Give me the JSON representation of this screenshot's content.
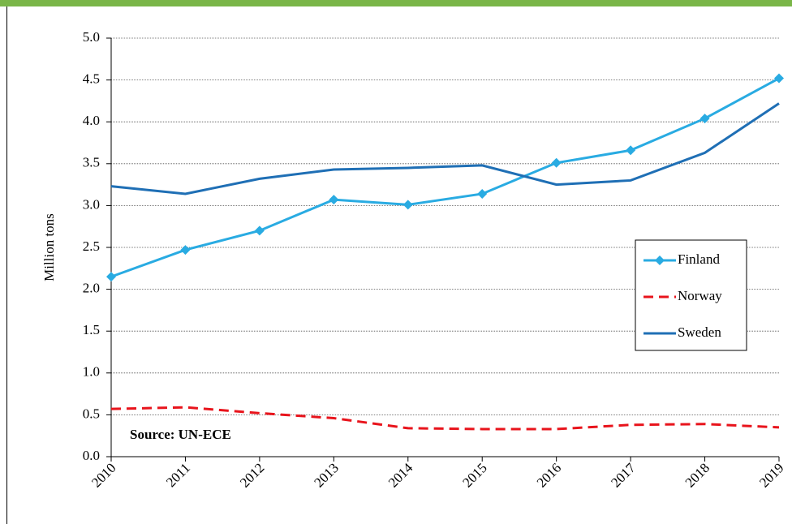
{
  "chart_data": {
    "type": "line",
    "y_label": "Million tons",
    "annotation": "Source: UN-ECE",
    "categories": [
      "2010",
      "2011",
      "2012",
      "2013",
      "2014",
      "2015",
      "2016",
      "2017",
      "2018",
      "2019"
    ],
    "series": [
      {
        "name": "Finland",
        "color": "#29abe2",
        "marker": "diamond",
        "dash": false,
        "values": [
          2.15,
          2.47,
          2.7,
          3.07,
          3.01,
          3.14,
          3.51,
          3.66,
          4.04,
          4.52
        ]
      },
      {
        "name": "Norway",
        "color": "#e8141c",
        "marker": "none",
        "dash": true,
        "values": [
          0.57,
          0.59,
          0.52,
          0.46,
          0.34,
          0.33,
          0.33,
          0.38,
          0.39,
          0.35
        ]
      },
      {
        "name": "Sweden",
        "color": "#1f6fb5",
        "marker": "none",
        "dash": false,
        "values": [
          3.23,
          3.14,
          3.32,
          3.43,
          3.45,
          3.48,
          3.25,
          3.3,
          3.63,
          4.22
        ]
      }
    ],
    "ylim": [
      0,
      5
    ],
    "yticks": [
      {
        "value": 0,
        "label": "0.0"
      },
      0.5,
      {
        "value": 1,
        "label": "1.0"
      },
      1.5,
      {
        "value": 2,
        "label": "2.0"
      },
      2.5,
      {
        "value": 3,
        "label": "3.0"
      },
      3.5,
      {
        "value": 4,
        "label": "4.0"
      },
      4.5,
      {
        "value": 5,
        "label": "5.0"
      }
    ],
    "grid": true,
    "legend": "right"
  }
}
